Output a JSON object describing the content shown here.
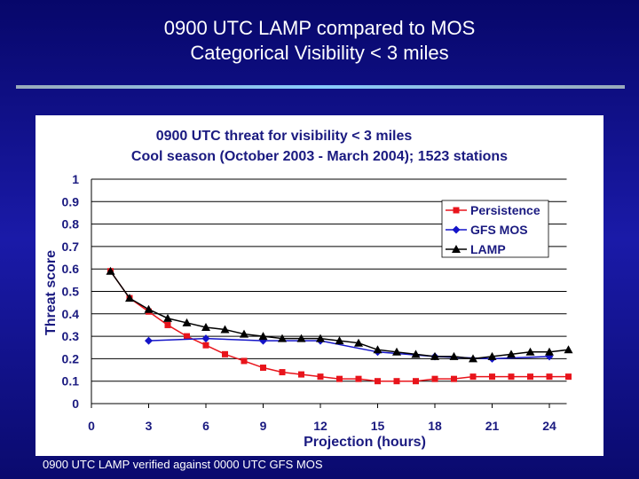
{
  "slide": {
    "title_line1": "0900 UTC LAMP compared to MOS",
    "title_line2": "Categorical Visibility < 3 miles",
    "footnote": "0900 UTC LAMP verified against 0000 UTC GFS MOS"
  },
  "chart_data": {
    "type": "line",
    "title": "0900 UTC threat for visibility < 3 miles",
    "subtitle": "Cool season (October 2003 - March 2004); 1523 stations",
    "xlabel": "Projection (hours)",
    "ylabel": "Threat score",
    "xlim": [
      0,
      25
    ],
    "ylim": [
      0,
      1
    ],
    "xticks": [
      "0",
      "3",
      "6",
      "9",
      "12",
      "15",
      "18",
      "21",
      "24"
    ],
    "yticks": [
      "0",
      "0.1",
      "0.2",
      "0.3",
      "0.4",
      "0.5",
      "0.6",
      "0.7",
      "0.8",
      "0.9",
      "1"
    ],
    "grid": "horizontal",
    "legend": "top-right",
    "series": [
      {
        "name": "Persistence",
        "color": "#e8141b",
        "marker": "square",
        "x": [
          1,
          2,
          3,
          4,
          5,
          6,
          7,
          8,
          9,
          10,
          11,
          12,
          13,
          14,
          15,
          16,
          17,
          18,
          19,
          20,
          21,
          22,
          23,
          24,
          25
        ],
        "values": [
          0.59,
          0.47,
          0.41,
          0.35,
          0.3,
          0.26,
          0.22,
          0.19,
          0.16,
          0.14,
          0.13,
          0.12,
          0.11,
          0.11,
          0.1,
          0.1,
          0.1,
          0.11,
          0.11,
          0.12,
          0.12,
          0.12,
          0.12,
          0.12,
          0.12
        ]
      },
      {
        "name": "GFS MOS",
        "color": "#1414c8",
        "marker": "diamond",
        "x": [
          3,
          6,
          9,
          12,
          15,
          18,
          21,
          24
        ],
        "values": [
          0.28,
          0.29,
          0.28,
          0.28,
          0.23,
          0.21,
          0.2,
          0.21
        ]
      },
      {
        "name": "LAMP",
        "color": "#000000",
        "marker": "triangle",
        "x": [
          1,
          2,
          3,
          4,
          5,
          6,
          7,
          8,
          9,
          10,
          11,
          12,
          13,
          14,
          15,
          16,
          17,
          18,
          19,
          20,
          21,
          22,
          23,
          24,
          25
        ],
        "values": [
          0.59,
          0.47,
          0.42,
          0.38,
          0.36,
          0.34,
          0.33,
          0.31,
          0.3,
          0.29,
          0.29,
          0.29,
          0.28,
          0.27,
          0.24,
          0.23,
          0.22,
          0.21,
          0.21,
          0.2,
          0.21,
          0.22,
          0.23,
          0.23,
          0.24
        ]
      }
    ]
  }
}
